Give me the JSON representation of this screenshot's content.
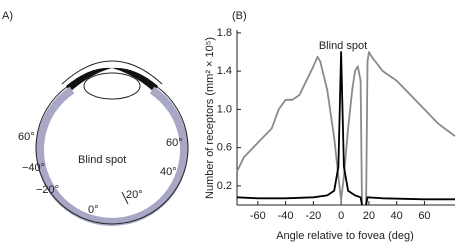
{
  "panel_a": {
    "label": "A)",
    "blind_spot": "Blind spot",
    "angles": [
      "60°",
      "−40°",
      "−20°",
      "0°",
      "20°",
      "40°",
      "60°"
    ]
  },
  "chart_data": {
    "type": "line",
    "panel_label": "(B)",
    "x_label": "Angle relative to fovea (deg)",
    "y_label": "Number of receptors (mm² × 10⁵)",
    "annotation": "Blind spot",
    "xlim": [
      -75,
      82
    ],
    "ylim": [
      0,
      1.83
    ],
    "xticks": [
      -60,
      -40,
      -20,
      0,
      20,
      40,
      60
    ],
    "yticks": [
      0.2,
      0.6,
      {
        "value": 1,
        "label": "1.0"
      },
      1.4,
      1.8
    ],
    "series": [
      {
        "color": "#8a8a8a",
        "x": [
          -75,
          -70,
          -60,
          -50,
          -45,
          -40,
          -35,
          -30,
          -25,
          -20,
          -17,
          -15,
          -10,
          -5,
          -2,
          0,
          2,
          5,
          8,
          10,
          12,
          14,
          15,
          16,
          17,
          18,
          19,
          20,
          22,
          30,
          40,
          50,
          60,
          70,
          82
        ],
        "values": [
          0.35,
          0.5,
          0.65,
          0.8,
          1.0,
          1.1,
          1.1,
          1.15,
          1.3,
          1.45,
          1.55,
          1.5,
          1.2,
          0.7,
          0.3,
          0.05,
          0.3,
          0.8,
          1.2,
          1.4,
          1.45,
          1.3,
          0,
          null,
          null,
          0,
          1.5,
          1.6,
          1.55,
          1.4,
          1.3,
          1.15,
          1.0,
          0.85,
          0.72
        ]
      },
      {
        "color": "#000000",
        "x": [
          -75,
          -60,
          -40,
          -20,
          -10,
          -5,
          -2,
          0,
          2,
          5,
          10,
          14,
          15,
          16,
          17,
          18,
          19,
          30,
          60,
          82
        ],
        "values": [
          0.08,
          0.07,
          0.07,
          0.08,
          0.1,
          0.15,
          0.4,
          1.6,
          0.4,
          0.15,
          0.1,
          0.08,
          0,
          null,
          null,
          0,
          0.08,
          0.07,
          0.06,
          0.06
        ]
      }
    ]
  }
}
